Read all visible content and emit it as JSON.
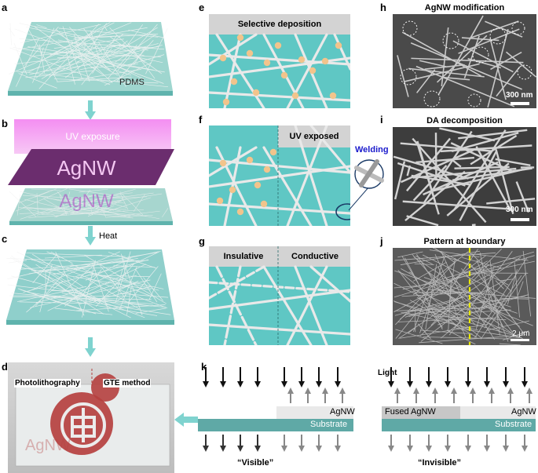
{
  "panels": {
    "a": {
      "label": "a",
      "text": "PDMS"
    },
    "b": {
      "label": "b",
      "uv_text": "UV exposure",
      "film_text": "AgNW",
      "mirror_text": "AgNW"
    },
    "arrow_bc": {
      "text": "Heat"
    },
    "c": {
      "label": "c"
    },
    "d": {
      "label": "d",
      "left_text": "Photolithography",
      "right_text": "GTE method",
      "watermark": "AgNW"
    },
    "e": {
      "label": "e",
      "banner": "Selective deposition"
    },
    "f": {
      "label": "f",
      "banner": "UV exposed",
      "callout": "Welding"
    },
    "g": {
      "label": "g",
      "banner_left": "Insulative",
      "banner_right": "Conductive"
    },
    "h": {
      "label": "h",
      "title": "AgNW modification",
      "scale": "300 nm"
    },
    "i": {
      "label": "i",
      "title": "DA decomposition",
      "scale": "300 nm"
    },
    "j": {
      "label": "j",
      "title": "Pattern at boundary",
      "scale": "2 μm"
    },
    "k": {
      "label": "k",
      "light": "Light",
      "left": {
        "top_layer": "AgNW",
        "substrate": "Substrate",
        "caption": "“Visible”"
      },
      "right": {
        "fused": "Fused AgNW",
        "top_layer": "AgNW",
        "substrate": "Substrate",
        "caption": "“Invisible”"
      }
    }
  },
  "colors": {
    "teal": "#5fc7c4",
    "banner": "#d3d3d3",
    "particle": "#f2c48c",
    "uv": "#e35ee0",
    "film": "#6b2d6e",
    "red_seal": "#b5403f",
    "welding_blue": "#1a1acc",
    "boundary_yellow": "#e8e800"
  }
}
